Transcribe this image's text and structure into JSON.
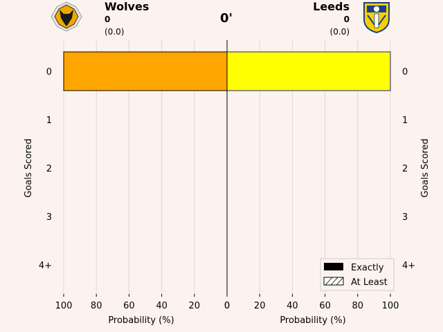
{
  "match": {
    "minute": "0'",
    "home": {
      "name": "Wolves",
      "score": "0",
      "xg": "(0.0)",
      "bar_color": "#FFA500"
    },
    "away": {
      "name": "Leeds",
      "score": "0",
      "xg": "(0.0)",
      "bar_color": "#FFFF00"
    }
  },
  "chart_data": {
    "type": "bar",
    "orientation": "horizontal-mirrored",
    "categories": [
      "0",
      "1",
      "2",
      "3",
      "4+"
    ],
    "series": [
      {
        "name": "Wolves",
        "side": "left",
        "exactly": [
          100,
          0,
          0,
          0,
          0
        ],
        "at_least": [
          100,
          0,
          0,
          0,
          0
        ]
      },
      {
        "name": "Leeds",
        "side": "right",
        "exactly": [
          100,
          0,
          0,
          0,
          0
        ],
        "at_least": [
          100,
          0,
          0,
          0,
          0
        ]
      }
    ],
    "xlim": [
      0,
      100
    ],
    "xticks": [
      "100",
      "80",
      "60",
      "40",
      "20",
      "0",
      "0",
      "20",
      "40",
      "60",
      "80",
      "100"
    ],
    "xlabel_left": "Probability (%)",
    "xlabel_right": "Probability (%)",
    "ylabel_left": "Goals Scored",
    "ylabel_right": "Goals Scored",
    "grid": true,
    "legend": {
      "placement": "bottom-right",
      "items": [
        "Exactly",
        "At Least"
      ]
    }
  }
}
